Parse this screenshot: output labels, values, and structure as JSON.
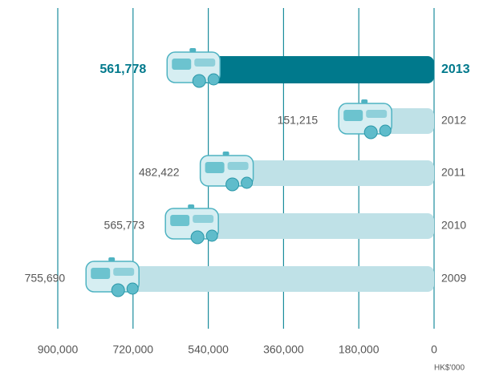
{
  "chart_data": {
    "type": "hbar",
    "categories": [
      "2013",
      "2012",
      "2011",
      "2010",
      "2009"
    ],
    "values": [
      561778,
      151215,
      482422,
      565773,
      755690
    ],
    "value_labels": [
      "561,778",
      "151,215",
      "482,422",
      "565,773",
      "755,690"
    ],
    "colors": [
      "#00798c",
      "#bfe1e7",
      "#bfe1e7",
      "#bfe1e7",
      "#bfe1e7"
    ],
    "highlight_color": "#00798c",
    "xlim": [
      0,
      900000
    ],
    "xticks": [
      {
        "value": 900000,
        "label": "900,000"
      },
      {
        "value": 720000,
        "label": "720,000"
      },
      {
        "value": 540000,
        "label": "540,000"
      },
      {
        "value": 360000,
        "label": "360,000"
      },
      {
        "value": 180000,
        "label": "180,000"
      },
      0
    ],
    "x_reversed": true,
    "grid": true,
    "unit_label": "HK$'000"
  }
}
